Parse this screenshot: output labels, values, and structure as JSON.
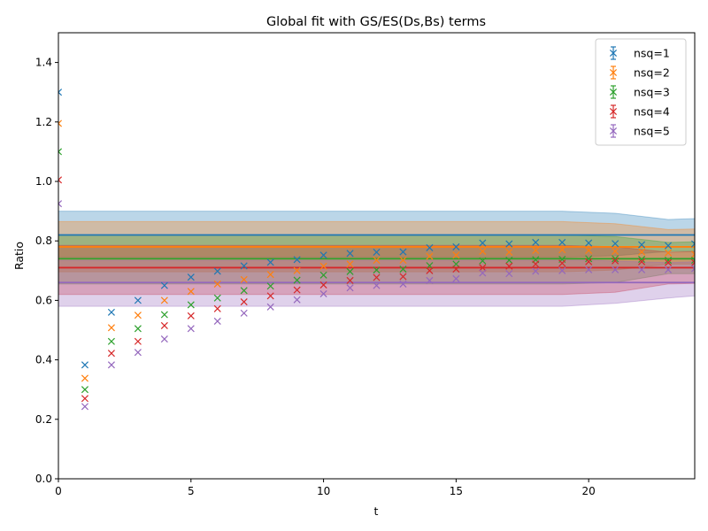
{
  "chart_data": {
    "type": "scatter",
    "title": "Global fit with GS/ES(Ds,Bs) terms",
    "xlabel": "t",
    "ylabel": "Ratio",
    "xlim": [
      0,
      24
    ],
    "ylim": [
      0.0,
      1.5
    ],
    "xticks": [
      0,
      5,
      10,
      15,
      20
    ],
    "yticks": [
      0.0,
      0.2,
      0.4,
      0.6,
      0.8,
      1.0,
      1.2,
      1.4
    ],
    "grid": false,
    "legend_position": "top-right",
    "series": [
      {
        "name": "nsq=1",
        "color": "#1f77b4",
        "fit_center": 0.82,
        "band": [
          {
            "t": 0,
            "lo": 0.745,
            "hi": 0.9
          },
          {
            "t": 19,
            "lo": 0.745,
            "hi": 0.9
          },
          {
            "t": 21,
            "lo": 0.75,
            "hi": 0.893
          },
          {
            "t": 23,
            "lo": 0.765,
            "hi": 0.872
          },
          {
            "t": 24,
            "lo": 0.765,
            "hi": 0.875
          }
        ],
        "points": [
          [
            0,
            1.3
          ],
          [
            1,
            0.383
          ],
          [
            2,
            0.56
          ],
          [
            3,
            0.6
          ],
          [
            4,
            0.65
          ],
          [
            5,
            0.678
          ],
          [
            6,
            0.698
          ],
          [
            7,
            0.716
          ],
          [
            8,
            0.728
          ],
          [
            9,
            0.737
          ],
          [
            10,
            0.752
          ],
          [
            11,
            0.758
          ],
          [
            12,
            0.762
          ],
          [
            13,
            0.763
          ],
          [
            14,
            0.777
          ],
          [
            15,
            0.78
          ],
          [
            16,
            0.793
          ],
          [
            17,
            0.79
          ],
          [
            18,
            0.795
          ],
          [
            19,
            0.795
          ],
          [
            20,
            0.793
          ],
          [
            21,
            0.791
          ],
          [
            22,
            0.787
          ],
          [
            23,
            0.784
          ],
          [
            24,
            0.79
          ]
        ]
      },
      {
        "name": "nsq=2",
        "color": "#ff7f0e",
        "fit_center": 0.78,
        "band": [
          {
            "t": 0,
            "lo": 0.696,
            "hi": 0.865
          },
          {
            "t": 19,
            "lo": 0.696,
            "hi": 0.865
          },
          {
            "t": 21,
            "lo": 0.702,
            "hi": 0.858
          },
          {
            "t": 23,
            "lo": 0.722,
            "hi": 0.838
          },
          {
            "t": 24,
            "lo": 0.722,
            "hi": 0.84
          }
        ],
        "points": [
          [
            0,
            1.195
          ],
          [
            1,
            0.338
          ],
          [
            2,
            0.508
          ],
          [
            3,
            0.55
          ],
          [
            4,
            0.6
          ],
          [
            5,
            0.63
          ],
          [
            6,
            0.655
          ],
          [
            7,
            0.67
          ],
          [
            8,
            0.687
          ],
          [
            9,
            0.7
          ],
          [
            10,
            0.715
          ],
          [
            11,
            0.722
          ],
          [
            12,
            0.735
          ],
          [
            13,
            0.735
          ],
          [
            14,
            0.748
          ],
          [
            15,
            0.752
          ],
          [
            16,
            0.765
          ],
          [
            17,
            0.762
          ],
          [
            18,
            0.768
          ],
          [
            19,
            0.77
          ],
          [
            20,
            0.768
          ],
          [
            21,
            0.765
          ],
          [
            22,
            0.763
          ],
          [
            23,
            0.76
          ],
          [
            24,
            0.755
          ]
        ]
      },
      {
        "name": "nsq=3",
        "color": "#2ca02c",
        "fit_center": 0.74,
        "band": [
          {
            "t": 0,
            "lo": 0.655,
            "hi": 0.82
          },
          {
            "t": 19,
            "lo": 0.655,
            "hi": 0.82
          },
          {
            "t": 21,
            "lo": 0.66,
            "hi": 0.815
          },
          {
            "t": 23,
            "lo": 0.69,
            "hi": 0.795
          },
          {
            "t": 24,
            "lo": 0.69,
            "hi": 0.797
          }
        ],
        "points": [
          [
            0,
            1.1
          ],
          [
            1,
            0.3
          ],
          [
            2,
            0.462
          ],
          [
            3,
            0.505
          ],
          [
            4,
            0.552
          ],
          [
            5,
            0.585
          ],
          [
            6,
            0.608
          ],
          [
            7,
            0.633
          ],
          [
            8,
            0.648
          ],
          [
            9,
            0.668
          ],
          [
            10,
            0.685
          ],
          [
            11,
            0.697
          ],
          [
            12,
            0.702
          ],
          [
            13,
            0.705
          ],
          [
            14,
            0.717
          ],
          [
            15,
            0.722
          ],
          [
            16,
            0.733
          ],
          [
            17,
            0.735
          ],
          [
            18,
            0.737
          ],
          [
            19,
            0.738
          ],
          [
            20,
            0.74
          ],
          [
            21,
            0.74
          ],
          [
            22,
            0.738
          ],
          [
            23,
            0.735
          ],
          [
            24,
            0.735
          ]
        ]
      },
      {
        "name": "nsq=4",
        "color": "#d62728",
        "fit_center": 0.71,
        "band": [
          {
            "t": 0,
            "lo": 0.62,
            "hi": 0.785
          },
          {
            "t": 19,
            "lo": 0.62,
            "hi": 0.785
          },
          {
            "t": 21,
            "lo": 0.627,
            "hi": 0.78
          },
          {
            "t": 23,
            "lo": 0.655,
            "hi": 0.762
          },
          {
            "t": 24,
            "lo": 0.657,
            "hi": 0.764
          }
        ],
        "points": [
          [
            0,
            1.005
          ],
          [
            1,
            0.27
          ],
          [
            2,
            0.422
          ],
          [
            3,
            0.462
          ],
          [
            4,
            0.515
          ],
          [
            5,
            0.548
          ],
          [
            6,
            0.572
          ],
          [
            7,
            0.595
          ],
          [
            8,
            0.615
          ],
          [
            9,
            0.635
          ],
          [
            10,
            0.652
          ],
          [
            11,
            0.667
          ],
          [
            12,
            0.677
          ],
          [
            13,
            0.68
          ],
          [
            14,
            0.7
          ],
          [
            15,
            0.705
          ],
          [
            16,
            0.71
          ],
          [
            17,
            0.715
          ],
          [
            18,
            0.722
          ],
          [
            19,
            0.725
          ],
          [
            20,
            0.73
          ],
          [
            21,
            0.733
          ],
          [
            22,
            0.73
          ],
          [
            23,
            0.727
          ],
          [
            24,
            0.727
          ]
        ]
      },
      {
        "name": "nsq=5",
        "color": "#9467bd",
        "fit_center": 0.66,
        "band": [
          {
            "t": 0,
            "lo": 0.58,
            "hi": 0.735
          },
          {
            "t": 19,
            "lo": 0.58,
            "hi": 0.735
          },
          {
            "t": 20,
            "lo": 0.585,
            "hi": 0.735
          },
          {
            "t": 21,
            "lo": 0.59,
            "hi": 0.732
          },
          {
            "t": 23,
            "lo": 0.608,
            "hi": 0.727
          },
          {
            "t": 24,
            "lo": 0.615,
            "hi": 0.73
          }
        ],
        "points": [
          [
            0,
            0.925
          ],
          [
            1,
            0.243
          ],
          [
            2,
            0.383
          ],
          [
            3,
            0.425
          ],
          [
            4,
            0.47
          ],
          [
            5,
            0.505
          ],
          [
            6,
            0.53
          ],
          [
            7,
            0.557
          ],
          [
            8,
            0.578
          ],
          [
            9,
            0.602
          ],
          [
            10,
            0.622
          ],
          [
            11,
            0.642
          ],
          [
            12,
            0.65
          ],
          [
            13,
            0.655
          ],
          [
            14,
            0.667
          ],
          [
            15,
            0.673
          ],
          [
            16,
            0.692
          ],
          [
            17,
            0.69
          ],
          [
            18,
            0.698
          ],
          [
            19,
            0.7
          ],
          [
            20,
            0.703
          ],
          [
            21,
            0.703
          ],
          [
            22,
            0.703
          ],
          [
            23,
            0.703
          ],
          [
            24,
            0.707
          ]
        ]
      }
    ]
  }
}
